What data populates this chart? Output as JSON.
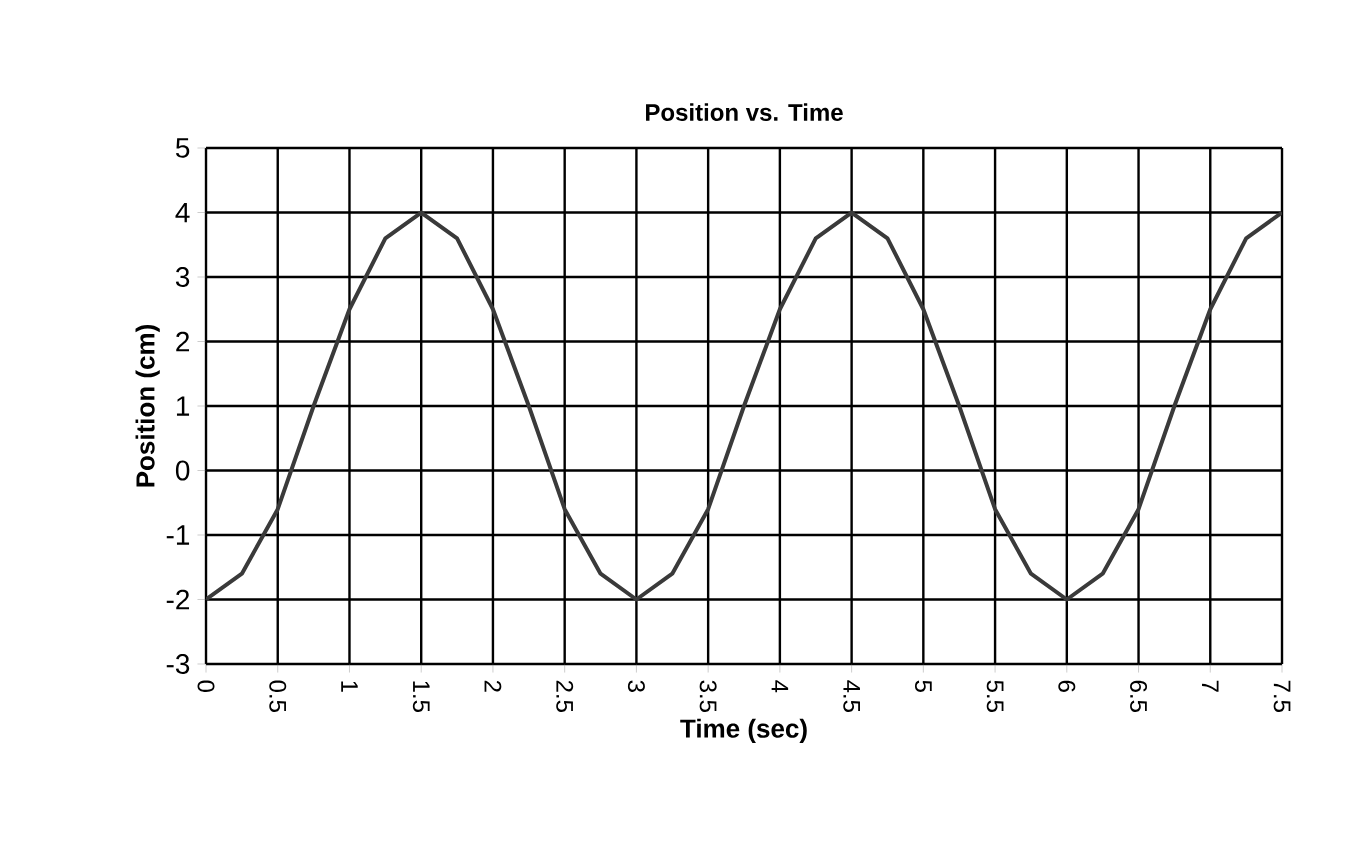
{
  "chart_data": {
    "type": "line",
    "title": "Position vs. Time",
    "xlabel": "Time (sec)",
    "ylabel": "Position (cm)",
    "x": [
      0,
      0.25,
      0.5,
      0.75,
      1,
      1.25,
      1.5,
      1.75,
      2,
      2.25,
      2.5,
      2.75,
      3,
      3.25,
      3.5,
      3.75,
      4,
      4.25,
      4.5,
      4.75,
      5,
      5.25,
      5.5,
      5.75,
      6,
      6.25,
      6.5,
      6.75,
      7,
      7.25,
      7.5
    ],
    "series": [
      {
        "color": "#3a3a3a",
        "values": [
          -2,
          -1.6,
          -0.6,
          1,
          2.5,
          3.6,
          4,
          3.6,
          2.5,
          1,
          -0.6,
          -1.6,
          -2,
          -1.6,
          -0.6,
          1,
          2.5,
          3.6,
          4,
          3.6,
          2.5,
          1,
          -0.6,
          -1.6,
          -2,
          -1.6,
          -0.6,
          1,
          2.5,
          3.6,
          4
        ]
      }
    ],
    "xlim": [
      0,
      7.5
    ],
    "ylim": [
      -3,
      5
    ],
    "xticks": [
      0,
      0.5,
      1,
      1.5,
      2,
      2.5,
      3,
      3.5,
      4,
      4.5,
      5,
      5.5,
      6,
      6.5,
      7,
      7.5
    ],
    "yticks": [
      -3,
      -2,
      -1,
      0,
      1,
      2,
      3,
      4,
      5
    ],
    "grid": true,
    "marker": "none",
    "line_style": "solid"
  }
}
